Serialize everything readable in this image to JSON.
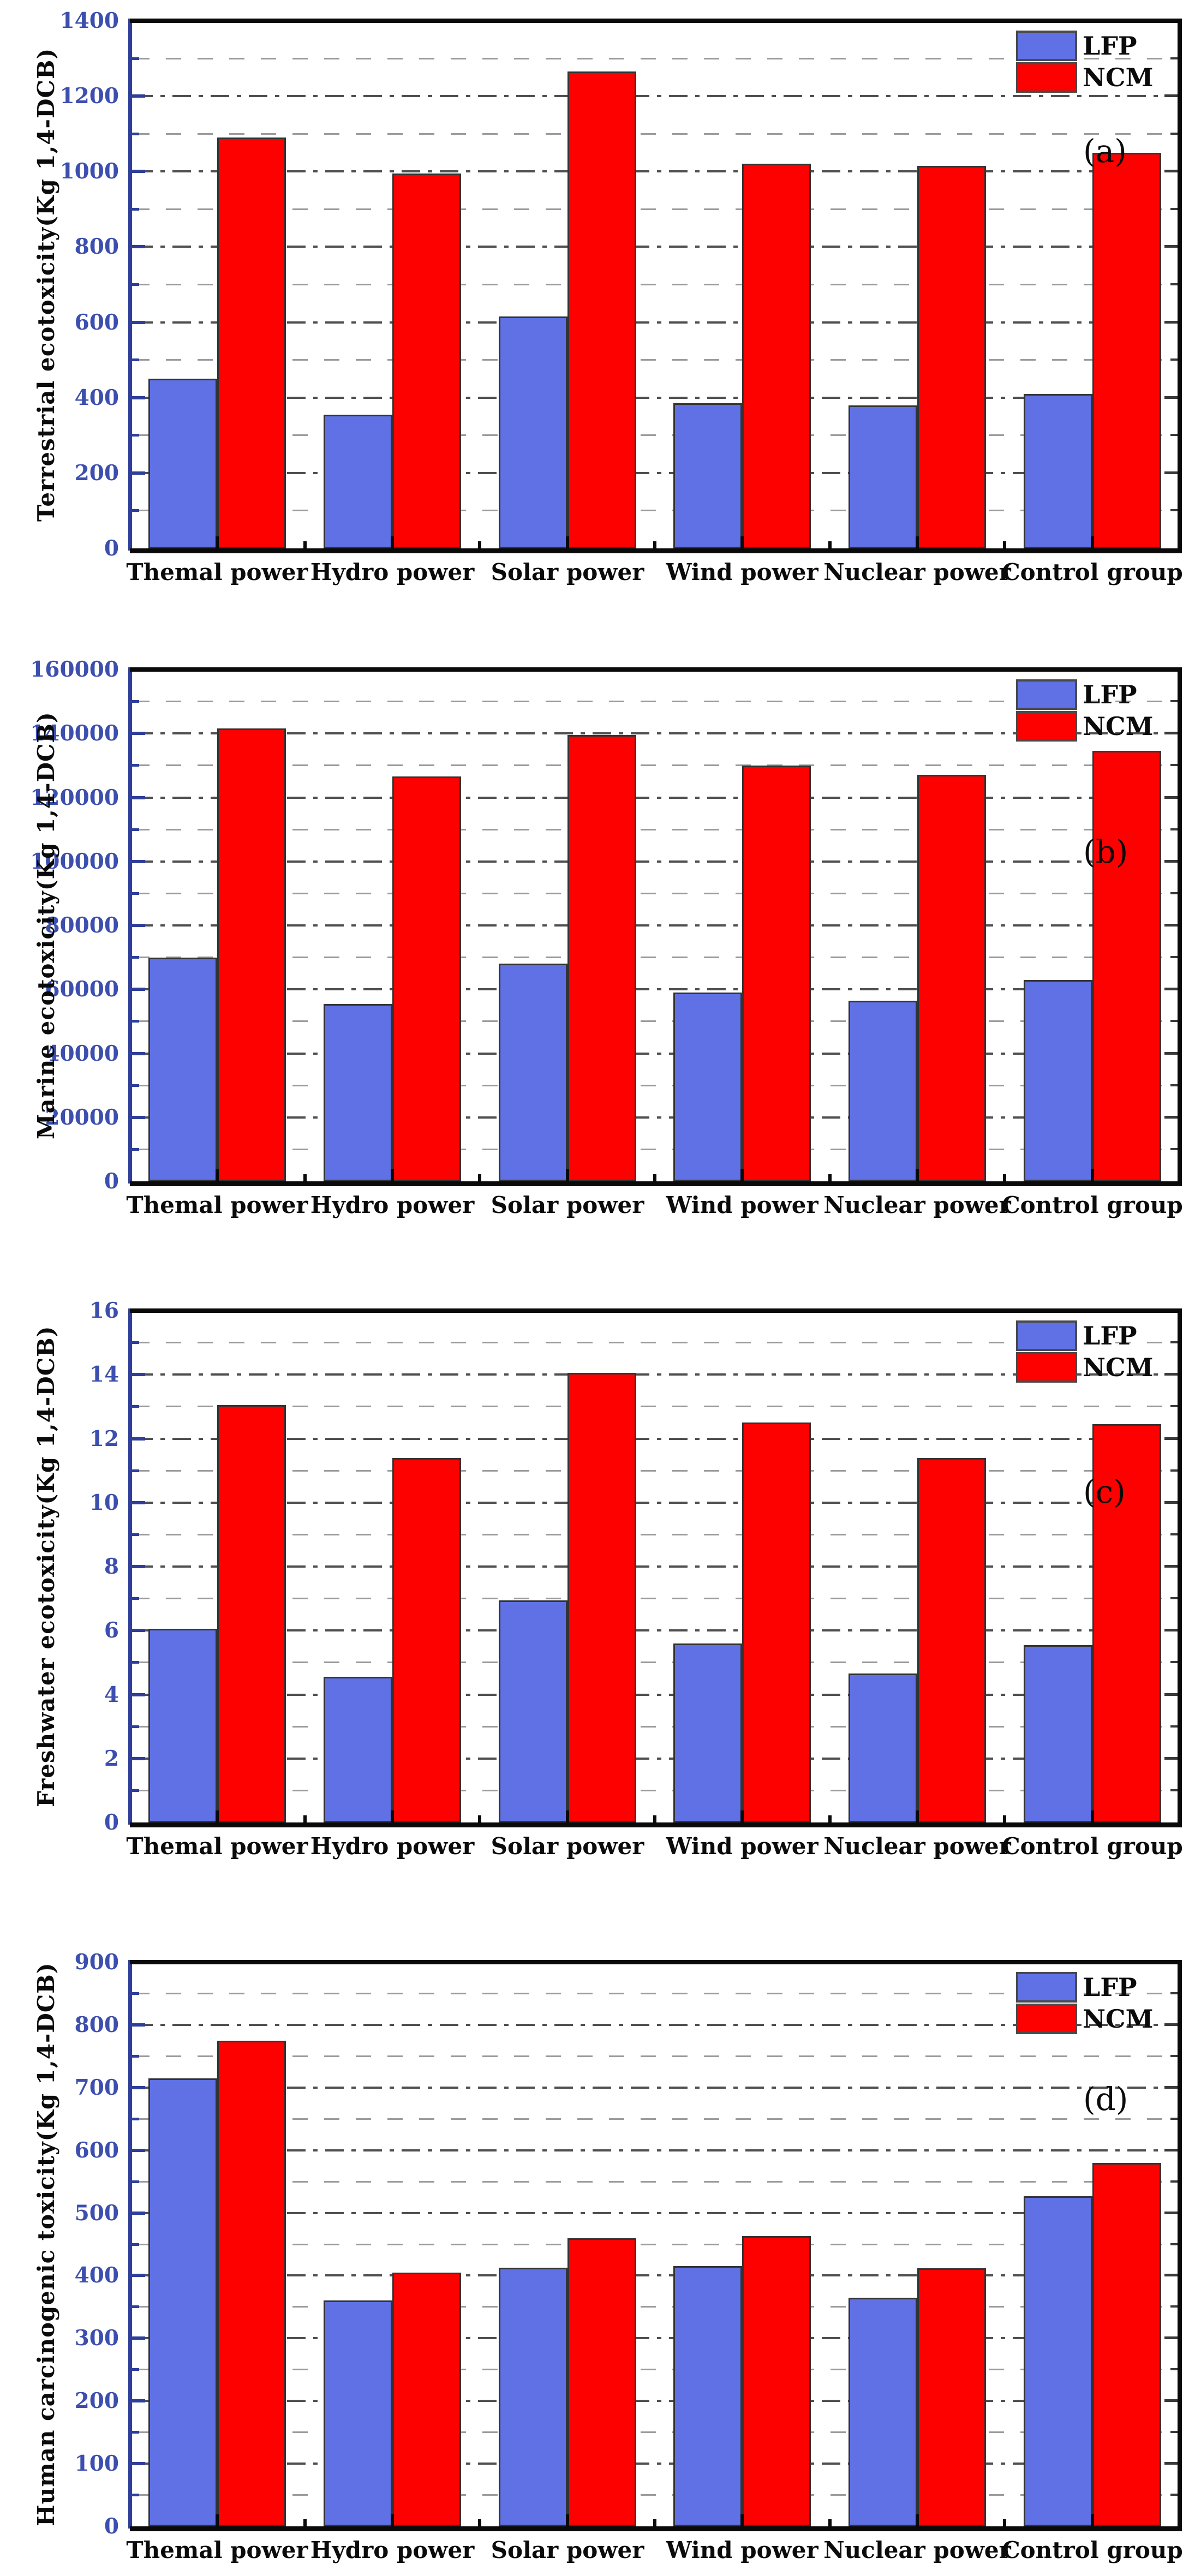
{
  "figure": {
    "background": "#ffffff",
    "description": "Four stacked grouped bar charts comparing LFP and NCM toxicity impacts across power sources"
  },
  "colors": {
    "lfp_bar": "#5f71e4",
    "ncm_bar": "#fd0000",
    "axis_spine_blue": "#2e3e99",
    "ytick_label_blue": "#3c4fae",
    "black_spine": "#0a0a0a",
    "grid_major": "#4f4f4f",
    "grid_minor": "#9b9b9b",
    "text_black": "#0b0b0b",
    "bar_border": "#333333"
  },
  "legend": {
    "items": [
      {
        "label": "LFP",
        "color_key": "lfp_bar"
      },
      {
        "label": "NCM",
        "color_key": "ncm_bar"
      }
    ]
  },
  "categories": [
    "Themal power",
    "Hydro power",
    "Solar power",
    "Wind power",
    "Nuclear power",
    "Control group"
  ],
  "chart_data": [
    {
      "type": "bar",
      "panel_label": "(a)",
      "ylabel": "Terrestrial ecotoxicity(Kg 1,4-DCB)",
      "xlabel": "",
      "ylim": [
        0,
        1400
      ],
      "ytick_step": 200,
      "yminor_step": 100,
      "grid": "on",
      "legend_position": "top-right",
      "categories": [
        "Themal power",
        "Hydro power",
        "Solar power",
        "Wind power",
        "Nuclear power",
        "Control group"
      ],
      "series": [
        {
          "name": "LFP",
          "values": [
            450,
            355,
            615,
            385,
            380,
            410
          ]
        },
        {
          "name": "NCM",
          "values": [
            1090,
            995,
            1265,
            1020,
            1015,
            1050
          ]
        }
      ]
    },
    {
      "type": "bar",
      "panel_label": "(b)",
      "ylabel": "Marine ecotoxicity(Kg 1,4-DCB)",
      "xlabel": "",
      "ylim": [
        0,
        160000
      ],
      "ytick_step": 20000,
      "yminor_step": 10000,
      "grid": "on",
      "legend_position": "top-right",
      "categories": [
        "Themal power",
        "Hydro power",
        "Solar power",
        "Wind power",
        "Nuclear power",
        "Control group"
      ],
      "series": [
        {
          "name": "LFP",
          "values": [
            70000,
            55500,
            68000,
            59000,
            56500,
            63000
          ]
        },
        {
          "name": "NCM",
          "values": [
            141500,
            126500,
            139500,
            130000,
            127000,
            134500
          ]
        }
      ]
    },
    {
      "type": "bar",
      "panel_label": "(c)",
      "ylabel": "Freshwater ecotoxicity(Kg 1,4-DCB)",
      "xlabel": "",
      "ylim": [
        0,
        16
      ],
      "ytick_step": 2,
      "yminor_step": 1,
      "grid": "on",
      "legend_position": "top-right",
      "categories": [
        "Themal power",
        "Hydro power",
        "Solar power",
        "Wind power",
        "Nuclear power",
        "Control group"
      ],
      "series": [
        {
          "name": "LFP",
          "values": [
            6.05,
            4.55,
            6.95,
            5.6,
            4.65,
            5.55
          ]
        },
        {
          "name": "NCM",
          "values": [
            13.05,
            11.4,
            14.05,
            12.5,
            11.4,
            12.45
          ]
        }
      ]
    },
    {
      "type": "bar",
      "panel_label": "(d)",
      "ylabel": "Human carcinogenic toxicity(Kg 1,4-DCB)",
      "xlabel": "",
      "ylim": [
        0,
        900
      ],
      "ytick_step": 100,
      "yminor_step": 50,
      "grid": "on",
      "legend_position": "top-right",
      "categories": [
        "Themal power",
        "Hydro power",
        "Solar power",
        "Wind power",
        "Nuclear power",
        "Control group"
      ],
      "series": [
        {
          "name": "LFP",
          "values": [
            715,
            360,
            413,
            415,
            365,
            527
          ]
        },
        {
          "name": "NCM",
          "values": [
            775,
            405,
            460,
            463,
            412,
            580
          ]
        }
      ]
    }
  ]
}
